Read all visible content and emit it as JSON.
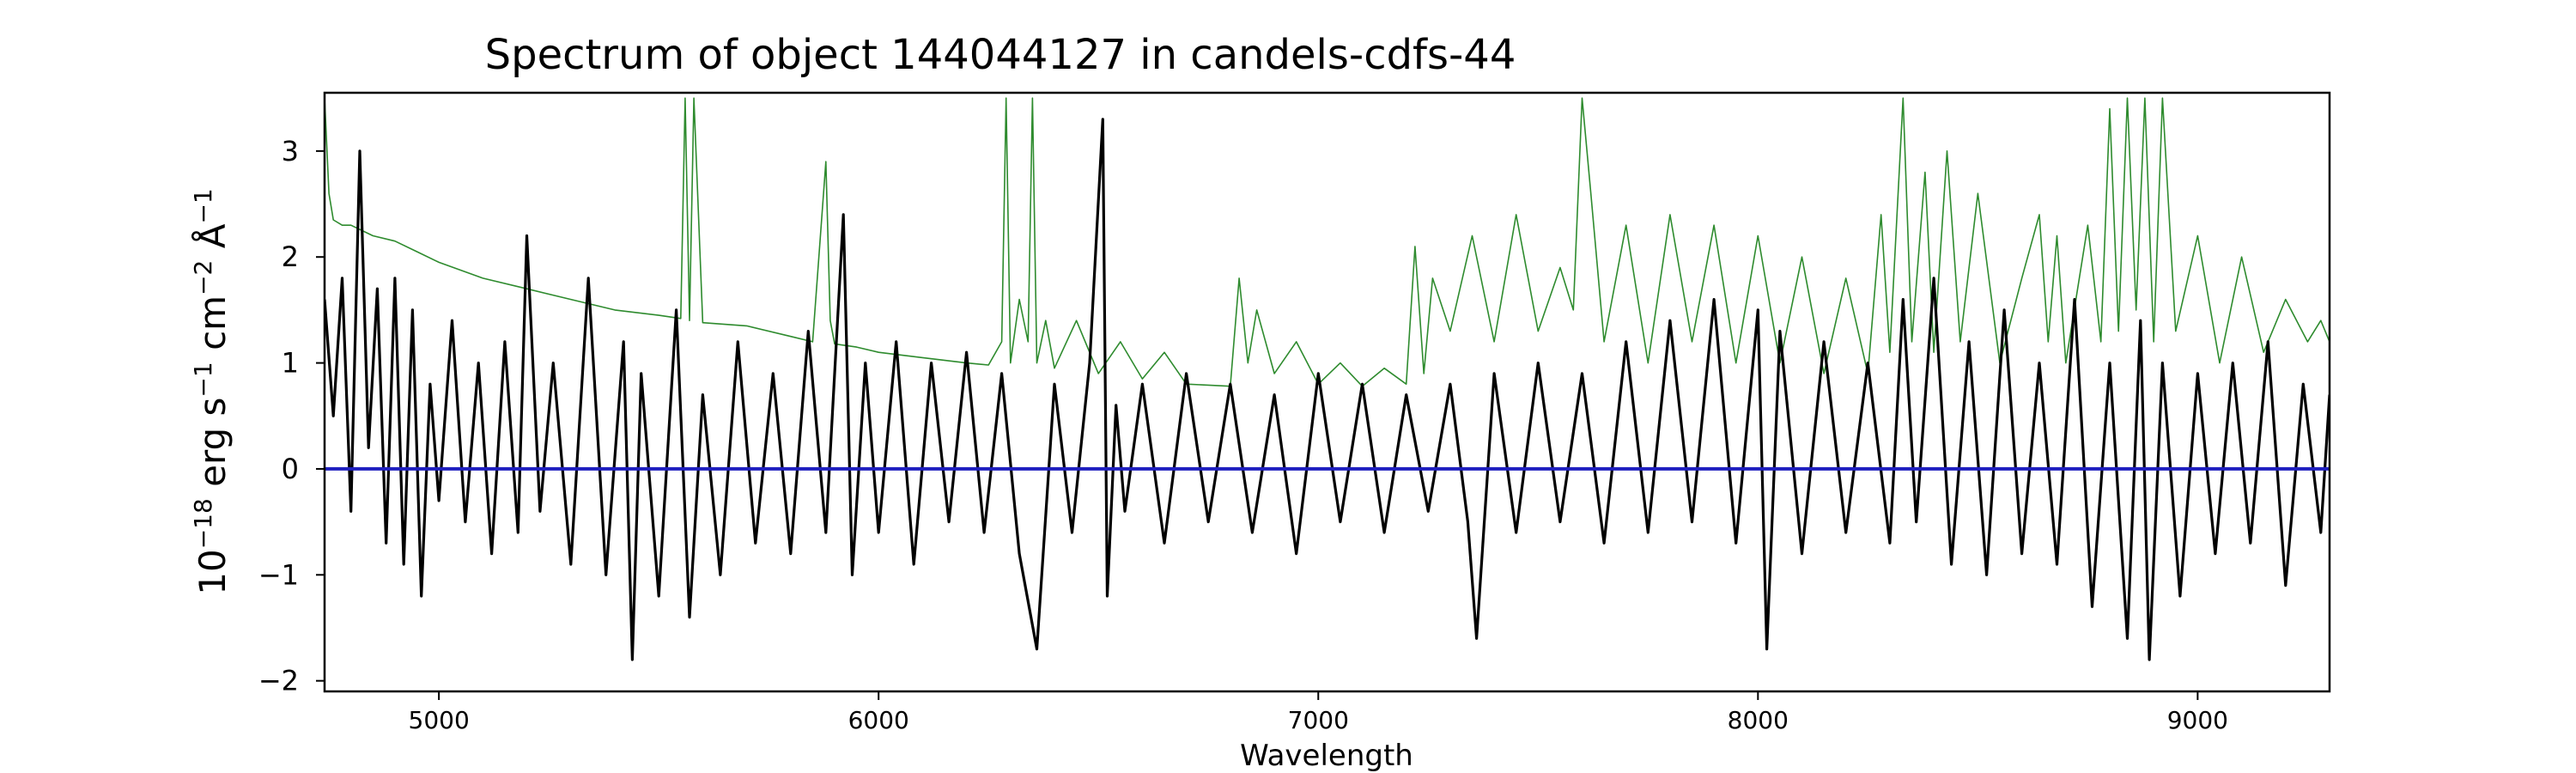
{
  "chart_data": {
    "type": "line",
    "title": "Spectrum of object 144044127 in candels-cdfs-44",
    "xlabel": "Wavelength",
    "ylabel_parts": [
      "10",
      "−18",
      " erg s",
      "−1",
      " cm",
      "−2",
      " Å",
      "−1"
    ],
    "xlim": [
      4740,
      9300
    ],
    "ylim": [
      -2.1,
      3.55
    ],
    "x_ticks": [
      5000,
      6000,
      7000,
      8000,
      9000
    ],
    "x_tick_labels": [
      "5000",
      "6000",
      "7000",
      "8000",
      "9000"
    ],
    "y_ticks": [
      -2,
      -1,
      0,
      1,
      2,
      3
    ],
    "y_tick_labels": [
      "−2",
      "−1",
      "0",
      "1",
      "2",
      "3"
    ],
    "grid": false,
    "series": [
      {
        "role": "flux",
        "color": "#000000",
        "x": [
          4740,
          4760,
          4780,
          4800,
          4820,
          4840,
          4860,
          4880,
          4900,
          4920,
          4940,
          4960,
          4980,
          5000,
          5030,
          5060,
          5090,
          5120,
          5150,
          5180,
          5200,
          5230,
          5260,
          5300,
          5340,
          5380,
          5420,
          5440,
          5460,
          5500,
          5540,
          5570,
          5600,
          5640,
          5680,
          5720,
          5760,
          5800,
          5840,
          5880,
          5920,
          5940,
          5970,
          6000,
          6040,
          6080,
          6120,
          6160,
          6200,
          6240,
          6280,
          6320,
          6360,
          6400,
          6440,
          6480,
          6510,
          6520,
          6540,
          6560,
          6600,
          6650,
          6700,
          6750,
          6800,
          6850,
          6900,
          6950,
          7000,
          7050,
          7100,
          7150,
          7200,
          7250,
          7300,
          7340,
          7360,
          7400,
          7450,
          7500,
          7550,
          7600,
          7650,
          7700,
          7750,
          7800,
          7850,
          7900,
          7950,
          8000,
          8020,
          8050,
          8100,
          8150,
          8200,
          8250,
          8300,
          8330,
          8360,
          8400,
          8440,
          8480,
          8520,
          8560,
          8600,
          8640,
          8680,
          8720,
          8760,
          8800,
          8840,
          8870,
          8890,
          8920,
          8960,
          9000,
          9040,
          9080,
          9120,
          9160,
          9200,
          9240,
          9280,
          9300
        ],
        "y": [
          1.6,
          0.5,
          1.8,
          -0.4,
          3.0,
          0.2,
          1.7,
          -0.7,
          1.8,
          -0.9,
          1.5,
          -1.2,
          0.8,
          -0.3,
          1.4,
          -0.5,
          1.0,
          -0.8,
          1.2,
          -0.6,
          2.2,
          -0.4,
          1.0,
          -0.9,
          1.8,
          -1.0,
          1.2,
          -1.8,
          0.9,
          -1.2,
          1.5,
          -1.4,
          0.7,
          -1.0,
          1.2,
          -0.7,
          0.9,
          -0.8,
          1.3,
          -0.6,
          2.4,
          -1.0,
          1.0,
          -0.6,
          1.2,
          -0.9,
          1.0,
          -0.5,
          1.1,
          -0.6,
          0.9,
          -0.8,
          -1.7,
          0.8,
          -0.6,
          1.0,
          3.3,
          -1.2,
          0.6,
          -0.4,
          0.8,
          -0.7,
          0.9,
          -0.5,
          0.8,
          -0.6,
          0.7,
          -0.8,
          0.9,
          -0.5,
          0.8,
          -0.6,
          0.7,
          -0.4,
          0.8,
          -0.5,
          -1.6,
          0.9,
          -0.6,
          1.0,
          -0.5,
          0.9,
          -0.7,
          1.2,
          -0.6,
          1.4,
          -0.5,
          1.6,
          -0.7,
          1.5,
          -1.7,
          1.3,
          -0.8,
          1.2,
          -0.6,
          1.0,
          -0.7,
          1.6,
          -0.5,
          1.8,
          -0.9,
          1.2,
          -1.0,
          1.5,
          -0.8,
          1.0,
          -0.9,
          1.6,
          -1.3,
          1.0,
          -1.6,
          1.4,
          -1.8,
          1.0,
          -1.2,
          0.9,
          -0.8,
          1.0,
          -0.7,
          1.2,
          -1.1,
          0.8,
          -0.6,
          0.7
        ]
      },
      {
        "role": "error",
        "color": "#2e8b2e",
        "x": [
          4740,
          4750,
          4760,
          4780,
          4800,
          4850,
          4900,
          4950,
          5000,
          5100,
          5200,
          5300,
          5400,
          5500,
          5550,
          5560,
          5570,
          5580,
          5600,
          5700,
          5800,
          5850,
          5880,
          5890,
          5900,
          5950,
          6000,
          6100,
          6200,
          6250,
          6280,
          6290,
          6300,
          6320,
          6340,
          6350,
          6360,
          6380,
          6400,
          6450,
          6500,
          6550,
          6600,
          6650,
          6700,
          6800,
          6820,
          6840,
          6860,
          6900,
          6950,
          7000,
          7050,
          7100,
          7150,
          7200,
          7220,
          7240,
          7260,
          7300,
          7350,
          7400,
          7450,
          7500,
          7550,
          7580,
          7600,
          7620,
          7650,
          7700,
          7750,
          7800,
          7850,
          7900,
          7950,
          8000,
          8050,
          8100,
          8150,
          8200,
          8250,
          8280,
          8300,
          8330,
          8350,
          8380,
          8400,
          8430,
          8460,
          8500,
          8550,
          8600,
          8640,
          8660,
          8680,
          8700,
          8750,
          8780,
          8800,
          8820,
          8840,
          8860,
          8880,
          8900,
          8920,
          8950,
          9000,
          9050,
          9100,
          9150,
          9200,
          9250,
          9280,
          9300
        ],
        "y": [
          3.5,
          2.6,
          2.35,
          2.3,
          2.3,
          2.2,
          2.15,
          2.05,
          1.95,
          1.8,
          1.7,
          1.6,
          1.5,
          1.45,
          1.42,
          3.5,
          1.4,
          3.5,
          1.38,
          1.35,
          1.25,
          1.2,
          2.9,
          1.4,
          1.18,
          1.15,
          1.1,
          1.05,
          1.0,
          0.98,
          1.2,
          3.5,
          1.0,
          1.6,
          1.2,
          3.5,
          1.0,
          1.4,
          0.95,
          1.4,
          0.9,
          1.2,
          0.85,
          1.1,
          0.8,
          0.78,
          1.8,
          1.0,
          1.5,
          0.9,
          1.2,
          0.8,
          1.0,
          0.78,
          0.95,
          0.8,
          2.1,
          0.9,
          1.8,
          1.3,
          2.2,
          1.2,
          2.4,
          1.3,
          1.9,
          1.5,
          3.5,
          2.6,
          1.2,
          2.3,
          1.0,
          2.4,
          1.2,
          2.3,
          1.0,
          2.2,
          1.0,
          2.0,
          0.9,
          1.8,
          0.9,
          2.4,
          1.1,
          3.5,
          1.2,
          2.8,
          1.1,
          3.0,
          1.2,
          2.6,
          1.0,
          1.8,
          2.4,
          1.2,
          2.2,
          1.0,
          2.3,
          1.2,
          3.4,
          1.3,
          3.5,
          1.5,
          3.5,
          1.2,
          3.5,
          1.3,
          2.2,
          1.0,
          2.0,
          1.1,
          1.6,
          1.2,
          1.4,
          1.2
        ]
      },
      {
        "role": "zero",
        "color": "#1f1fbf",
        "x": [
          4740,
          9300
        ],
        "y": [
          0,
          0
        ]
      }
    ]
  }
}
